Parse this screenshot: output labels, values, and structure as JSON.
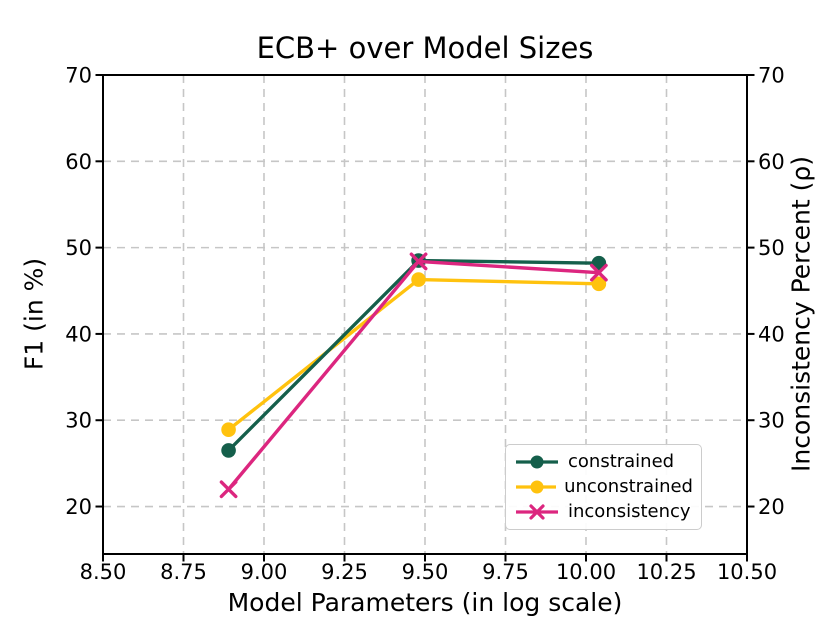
{
  "chart_data": {
    "type": "line",
    "title": "ECB+ over Model Sizes",
    "xlabel": "Model Parameters (in log scale)",
    "ylabel_left": "F1 (in %)",
    "ylabel_right": "Inconsistency Percent (ρ)",
    "xlim": [
      8.5,
      10.5
    ],
    "ylim": [
      14.5,
      70
    ],
    "xticks": [
      8.5,
      8.75,
      9.0,
      9.25,
      9.5,
      9.75,
      10.0,
      10.25,
      10.5
    ],
    "xtick_labels": [
      "8.50",
      "8.75",
      "9.00",
      "9.25",
      "9.50",
      "9.75",
      "10.00",
      "10.25",
      "10.50"
    ],
    "yticks": [
      20,
      30,
      40,
      50,
      60,
      70
    ],
    "ytick_labels": [
      "20",
      "30",
      "40",
      "50",
      "60",
      "70"
    ],
    "grid": {
      "show": true,
      "style": "dashed",
      "color": "#c6c6c6"
    },
    "x": [
      8.89,
      9.48,
      10.04
    ],
    "series": [
      {
        "name": "constrained",
        "marker": "circle",
        "color": "#155F4B",
        "values": [
          26.5,
          48.5,
          48.2
        ]
      },
      {
        "name": "unconstrained",
        "marker": "circle",
        "color": "#FFC20E",
        "values": [
          28.9,
          46.3,
          45.8
        ]
      },
      {
        "name": "inconsistency",
        "marker": "x",
        "color": "#DC267F",
        "values": [
          22.0,
          48.4,
          47.1
        ]
      }
    ],
    "legend": {
      "position": "lower-right"
    }
  }
}
